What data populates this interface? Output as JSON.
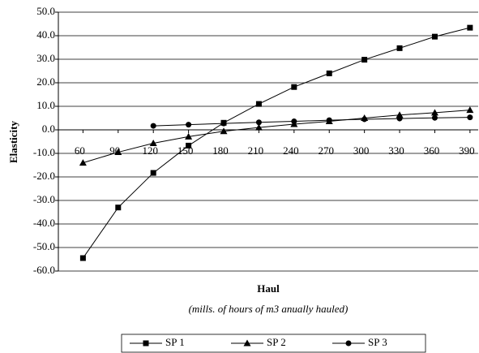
{
  "chart_data": {
    "type": "line",
    "x_label": "Haul",
    "x_sublabel": "(mills. of hours of m3 anually hauled)",
    "y_label": "Elasticity",
    "x": [
      60,
      90,
      120,
      150,
      180,
      210,
      240,
      270,
      300,
      330,
      360,
      390
    ],
    "xlim": [
      39,
      397
    ],
    "xticks": [
      60,
      90,
      120,
      150,
      180,
      210,
      240,
      270,
      300,
      330,
      360,
      390
    ],
    "ylim": [
      -60,
      50
    ],
    "yticks": [
      {
        "value": -60,
        "label": "-60.0"
      },
      {
        "value": -50,
        "label": "-50.0"
      },
      {
        "value": -40,
        "label": "-40.0"
      },
      {
        "value": -30,
        "label": "-30.0"
      },
      {
        "value": -20,
        "label": "-20.0"
      },
      {
        "value": -10,
        "label": "-10.0"
      },
      {
        "value": 0,
        "label": "0.0"
      },
      {
        "value": 10,
        "label": "10.0"
      },
      {
        "value": 20,
        "label": "20.0"
      },
      {
        "value": 30,
        "label": "30.0"
      },
      {
        "value": 40,
        "label": "40.0"
      },
      {
        "value": 50,
        "label": "50.0"
      }
    ],
    "grid": true,
    "legend": "bottom",
    "series": [
      {
        "name": "SP 1",
        "color": "#000000",
        "marker": "square",
        "values": [
          -54.5,
          -33,
          -18.3,
          -6.7,
          3,
          11,
          18.2,
          24,
          29.8,
          34.7,
          39.6,
          43.4
        ]
      },
      {
        "name": "SP 2",
        "color": "#000000",
        "marker": "triangle",
        "values": [
          -14,
          -9.5,
          -5.7,
          -2.9,
          -0.6,
          1,
          2.4,
          3.6,
          5,
          6.3,
          7.3,
          8.4
        ]
      },
      {
        "name": "SP 3",
        "color": "#000000",
        "marker": "circle",
        "values": [
          null,
          null,
          1.7,
          2.2,
          2.7,
          3.2,
          3.6,
          4.1,
          4.5,
          4.8,
          5.1,
          5.3
        ]
      }
    ]
  }
}
